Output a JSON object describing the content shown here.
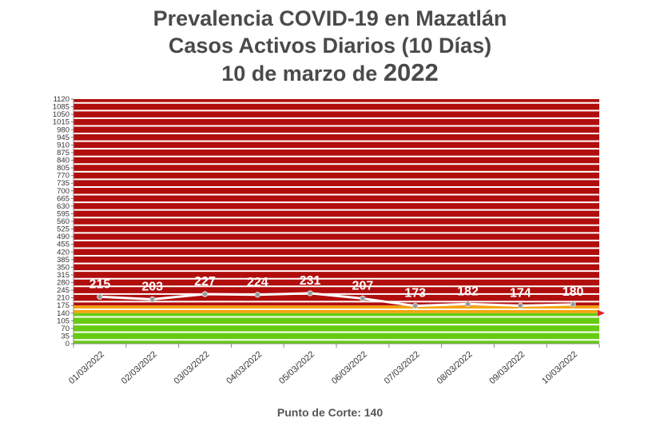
{
  "title": {
    "line1": "Prevalencia COVID-19 en Mazatlán",
    "line2": "Casos Activos Diarios (10 Días)",
    "line3_prefix": "10 de marzo de ",
    "line3_year": "2022"
  },
  "footer": "Punto de Corte: 140",
  "chart_data": {
    "type": "line",
    "title": "Prevalencia COVID-19 en Mazatlán — Casos Activos Diarios (10 Días) — 10 de marzo de 2022",
    "categories": [
      "01/03/2022",
      "02/03/2022",
      "03/03/2022",
      "04/03/2022",
      "05/03/2022",
      "06/03/2022",
      "07/03/2022",
      "08/03/2022",
      "09/03/2022",
      "10/03/2022"
    ],
    "series": [
      {
        "values": [
          215,
          203,
          227,
          224,
          231,
          207,
          173,
          182,
          174,
          180
        ]
      }
    ],
    "yticks": [
      0,
      35,
      70,
      105,
      140,
      175,
      210,
      245,
      280,
      315,
      350,
      385,
      420,
      455,
      490,
      525,
      560,
      595,
      630,
      665,
      700,
      735,
      770,
      805,
      840,
      875,
      910,
      945,
      980,
      1015,
      1050,
      1085,
      1120
    ],
    "ylim": [
      0,
      1120
    ],
    "cutoff": 140,
    "bands": [
      {
        "from": 0,
        "to": 140,
        "color": "#66cc11"
      },
      {
        "from": 140,
        "to": 175,
        "color": "#f5a50c"
      },
      {
        "from": 175,
        "to": 1120,
        "color": "#b10d0d"
      }
    ],
    "band_line_color": "#ffffff",
    "series_color": "#ffffff",
    "marker_color": "#999999",
    "cutoff_marker_color": "#e0203a",
    "grid": true
  }
}
